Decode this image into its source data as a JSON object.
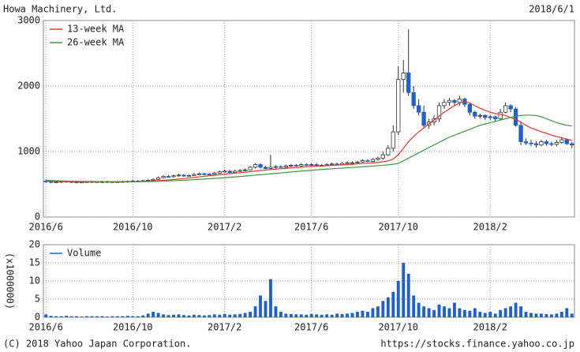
{
  "header": {
    "title": "Howa Machinery, Ltd.",
    "date": "2018/6/1"
  },
  "footer": {
    "copyright": "(C) 2018 Yahoo Japan Corporation.",
    "url": "https://stocks.finance.yahoo.co.jp"
  },
  "chart_data": [
    {
      "type": "candlestick",
      "categories": [
        "2016/6",
        null,
        null,
        null,
        null,
        null,
        null,
        null,
        null,
        null,
        null,
        null,
        null,
        null,
        null,
        null,
        null,
        "2016/10",
        null,
        null,
        null,
        null,
        null,
        null,
        null,
        null,
        null,
        null,
        null,
        null,
        null,
        null,
        null,
        null,
        null,
        "2017/2",
        null,
        null,
        null,
        null,
        null,
        null,
        null,
        null,
        null,
        null,
        null,
        null,
        null,
        null,
        null,
        null,
        "2017/6",
        null,
        null,
        null,
        null,
        null,
        null,
        null,
        null,
        null,
        null,
        null,
        null,
        null,
        null,
        null,
        null,
        "2017/10",
        null,
        null,
        null,
        null,
        null,
        null,
        null,
        null,
        null,
        null,
        null,
        null,
        null,
        null,
        null,
        null,
        null,
        "2018/2",
        null,
        null,
        null,
        null,
        null,
        null,
        null,
        null,
        null,
        null,
        null,
        null,
        null,
        null,
        null,
        null
      ],
      "open": [
        550,
        540,
        530,
        535,
        545,
        540,
        535,
        530,
        535,
        540,
        538,
        535,
        540,
        538,
        536,
        540,
        542,
        545,
        550,
        548,
        555,
        560,
        575,
        600,
        620,
        615,
        630,
        640,
        625,
        635,
        650,
        660,
        655,
        650,
        670,
        690,
        700,
        680,
        700,
        710,
        720,
        760,
        800,
        760,
        740,
        760,
        770,
        760,
        780,
        790,
        780,
        800,
        790,
        800,
        780,
        790,
        800,
        810,
        800,
        820,
        830,
        830,
        840,
        860,
        850,
        880,
        900,
        950,
        1050,
        1300,
        2100,
        2200,
        1900,
        1700,
        1600,
        1400,
        1450,
        1500,
        1700,
        1750,
        1780,
        1750,
        1800,
        1720,
        1600,
        1540,
        1550,
        1520,
        1530,
        1500,
        1600,
        1700,
        1650,
        1400,
        1150,
        1130,
        1120,
        1100,
        1150,
        1120,
        1110,
        1140,
        1180,
        1120
      ],
      "high": [
        570,
        555,
        545,
        555,
        560,
        555,
        550,
        545,
        550,
        555,
        550,
        555,
        555,
        550,
        550,
        555,
        560,
        565,
        565,
        570,
        575,
        590,
        620,
        640,
        640,
        650,
        660,
        655,
        650,
        670,
        680,
        675,
        670,
        690,
        710,
        720,
        720,
        720,
        730,
        740,
        780,
        820,
        820,
        780,
        950,
        790,
        790,
        800,
        810,
        810,
        820,
        820,
        820,
        820,
        810,
        820,
        830,
        830,
        840,
        850,
        850,
        860,
        880,
        880,
        900,
        920,
        1000,
        1100,
        1400,
        2300,
        2400,
        2870,
        2000,
        1800,
        1700,
        1500,
        1550,
        1750,
        1800,
        1820,
        1800,
        1850,
        1820,
        1750,
        1620,
        1580,
        1570,
        1560,
        1550,
        1650,
        1750,
        1720,
        1680,
        1450,
        1200,
        1180,
        1160,
        1180,
        1180,
        1150,
        1180,
        1220,
        1200,
        1150
      ],
      "low": [
        520,
        515,
        515,
        520,
        525,
        520,
        515,
        515,
        520,
        520,
        520,
        520,
        520,
        520,
        520,
        525,
        525,
        530,
        530,
        535,
        540,
        550,
        565,
        590,
        600,
        600,
        615,
        615,
        615,
        625,
        640,
        640,
        635,
        640,
        660,
        680,
        670,
        670,
        690,
        700,
        710,
        740,
        740,
        730,
        730,
        740,
        750,
        750,
        760,
        770,
        770,
        780,
        780,
        770,
        770,
        780,
        790,
        790,
        790,
        810,
        810,
        820,
        830,
        840,
        840,
        860,
        880,
        930,
        1000,
        1250,
        1900,
        1850,
        1650,
        1550,
        1350,
        1350,
        1400,
        1450,
        1650,
        1700,
        1700,
        1700,
        1680,
        1550,
        1500,
        1500,
        1480,
        1480,
        1450,
        1480,
        1580,
        1600,
        1380,
        1100,
        1100,
        1080,
        1060,
        1080,
        1090,
        1080,
        1080,
        1120,
        1100,
        1050
      ],
      "close": [
        540,
        530,
        535,
        545,
        540,
        535,
        530,
        535,
        540,
        538,
        535,
        540,
        538,
        536,
        540,
        542,
        545,
        550,
        548,
        555,
        560,
        575,
        600,
        620,
        615,
        630,
        640,
        625,
        635,
        650,
        660,
        655,
        650,
        670,
        690,
        700,
        680,
        700,
        710,
        720,
        760,
        800,
        760,
        740,
        760,
        770,
        760,
        780,
        790,
        780,
        800,
        790,
        800,
        780,
        790,
        800,
        810,
        800,
        820,
        830,
        830,
        840,
        860,
        850,
        880,
        900,
        950,
        1050,
        1300,
        2100,
        2200,
        1900,
        1700,
        1600,
        1400,
        1450,
        1500,
        1700,
        1750,
        1780,
        1750,
        1800,
        1720,
        1600,
        1540,
        1550,
        1520,
        1530,
        1500,
        1600,
        1700,
        1650,
        1400,
        1150,
        1130,
        1120,
        1100,
        1150,
        1120,
        1110,
        1140,
        1180,
        1120,
        1100
      ],
      "up_color": "#ffffff",
      "down_color": "#1f5fd6",
      "series": [
        {
          "name": "13-week MA",
          "color": "#e8342a",
          "values": [
            550,
            548,
            545,
            543,
            541,
            540,
            539,
            538,
            537,
            537,
            537,
            537,
            537,
            537,
            538,
            538,
            539,
            540,
            541,
            543,
            546,
            550,
            555,
            560,
            566,
            572,
            580,
            588,
            596,
            605,
            614,
            622,
            630,
            638,
            646,
            655,
            663,
            670,
            677,
            685,
            693,
            702,
            710,
            717,
            725,
            732,
            738,
            744,
            750,
            755,
            761,
            767,
            773,
            777,
            781,
            785,
            789,
            793,
            797,
            801,
            806,
            811,
            817,
            822,
            828,
            834,
            843,
            858,
            885,
            950,
            1050,
            1150,
            1230,
            1300,
            1360,
            1420,
            1480,
            1540,
            1600,
            1650,
            1700,
            1740,
            1760,
            1740,
            1700,
            1660,
            1630,
            1600,
            1580,
            1570,
            1550,
            1520,
            1490,
            1450,
            1400,
            1360,
            1330,
            1300,
            1280,
            1250,
            1230,
            1210,
            1190,
            1170
          ]
        },
        {
          "name": "26-week MA",
          "color": "#3a9a3a",
          "values": [
            560,
            557,
            554,
            551,
            549,
            547,
            545,
            544,
            543,
            542,
            541,
            540,
            540,
            540,
            540,
            540,
            540,
            540,
            540,
            541,
            542,
            544,
            546,
            549,
            552,
            555,
            558,
            562,
            566,
            570,
            575,
            580,
            585,
            590,
            595,
            601,
            607,
            613,
            619,
            625,
            632,
            639,
            646,
            653,
            660,
            667,
            674,
            681,
            688,
            695,
            702,
            708,
            714,
            720,
            726,
            732,
            737,
            742,
            747,
            752,
            757,
            762,
            768,
            773,
            778,
            784,
            790,
            797,
            806,
            820,
            860,
            900,
            940,
            980,
            1020,
            1060,
            1100,
            1140,
            1180,
            1220,
            1250,
            1280,
            1310,
            1340,
            1370,
            1400,
            1420,
            1440,
            1460,
            1480,
            1500,
            1520,
            1540,
            1550,
            1555,
            1555,
            1550,
            1530,
            1500,
            1470,
            1440,
            1420,
            1400,
            1390
          ]
        }
      ],
      "ylim": [
        0,
        3000
      ],
      "yticks": [
        0,
        1000,
        2000,
        3000
      ],
      "grid": true
    },
    {
      "type": "bar",
      "y_label": "(x1000000)",
      "categories": [
        "2016/6",
        null,
        null,
        null,
        null,
        null,
        null,
        null,
        null,
        null,
        null,
        null,
        null,
        null,
        null,
        null,
        null,
        "2016/10",
        null,
        null,
        null,
        null,
        null,
        null,
        null,
        null,
        null,
        null,
        null,
        null,
        null,
        null,
        null,
        null,
        null,
        "2017/2",
        null,
        null,
        null,
        null,
        null,
        null,
        null,
        null,
        null,
        null,
        null,
        null,
        null,
        null,
        null,
        null,
        "2017/6",
        null,
        null,
        null,
        null,
        null,
        null,
        null,
        null,
        null,
        null,
        null,
        null,
        null,
        null,
        null,
        null,
        "2017/10",
        null,
        null,
        null,
        null,
        null,
        null,
        null,
        null,
        null,
        null,
        null,
        null,
        null,
        null,
        null,
        null,
        null,
        "2018/2",
        null,
        null,
        null,
        null,
        null,
        null,
        null,
        null,
        null,
        null,
        null,
        null,
        null,
        null,
        null,
        null
      ],
      "series": [
        {
          "name": "Volume",
          "color": "#1f5fd6",
          "values": [
            0.8,
            0.4,
            0.3,
            0.3,
            0.4,
            0.3,
            0.3,
            0.2,
            0.3,
            0.3,
            0.3,
            0.3,
            0.2,
            0.3,
            0.3,
            0.3,
            0.4,
            0.3,
            0.3,
            0.5,
            1.0,
            1.5,
            1.2,
            0.8,
            0.6,
            0.7,
            0.8,
            0.6,
            0.5,
            0.7,
            0.6,
            0.5,
            0.6,
            0.8,
            0.7,
            0.9,
            0.7,
            0.8,
            0.9,
            1.2,
            1.5,
            3.0,
            6.0,
            4.5,
            10.5,
            3.0,
            1.5,
            1.0,
            0.9,
            0.8,
            0.8,
            0.7,
            0.9,
            0.8,
            0.7,
            0.8,
            0.7,
            1.0,
            0.9,
            1.0,
            1.2,
            1.5,
            1.8,
            1.5,
            2.5,
            3.0,
            4.5,
            5.5,
            7.0,
            10.0,
            15.0,
            12.0,
            6.0,
            4.0,
            3.0,
            2.5,
            2.0,
            3.5,
            3.0,
            2.5,
            4.0,
            2.5,
            2.0,
            1.8,
            2.5,
            1.5,
            1.2,
            1.5,
            1.0,
            2.0,
            2.5,
            3.0,
            4.0,
            3.0,
            1.5,
            1.2,
            1.0,
            1.0,
            0.9,
            0.8,
            1.0,
            1.5,
            2.5,
            1.0
          ]
        }
      ],
      "ylim": [
        0,
        20
      ],
      "yticks": [
        0,
        5,
        10,
        15,
        20
      ],
      "grid": true
    }
  ]
}
